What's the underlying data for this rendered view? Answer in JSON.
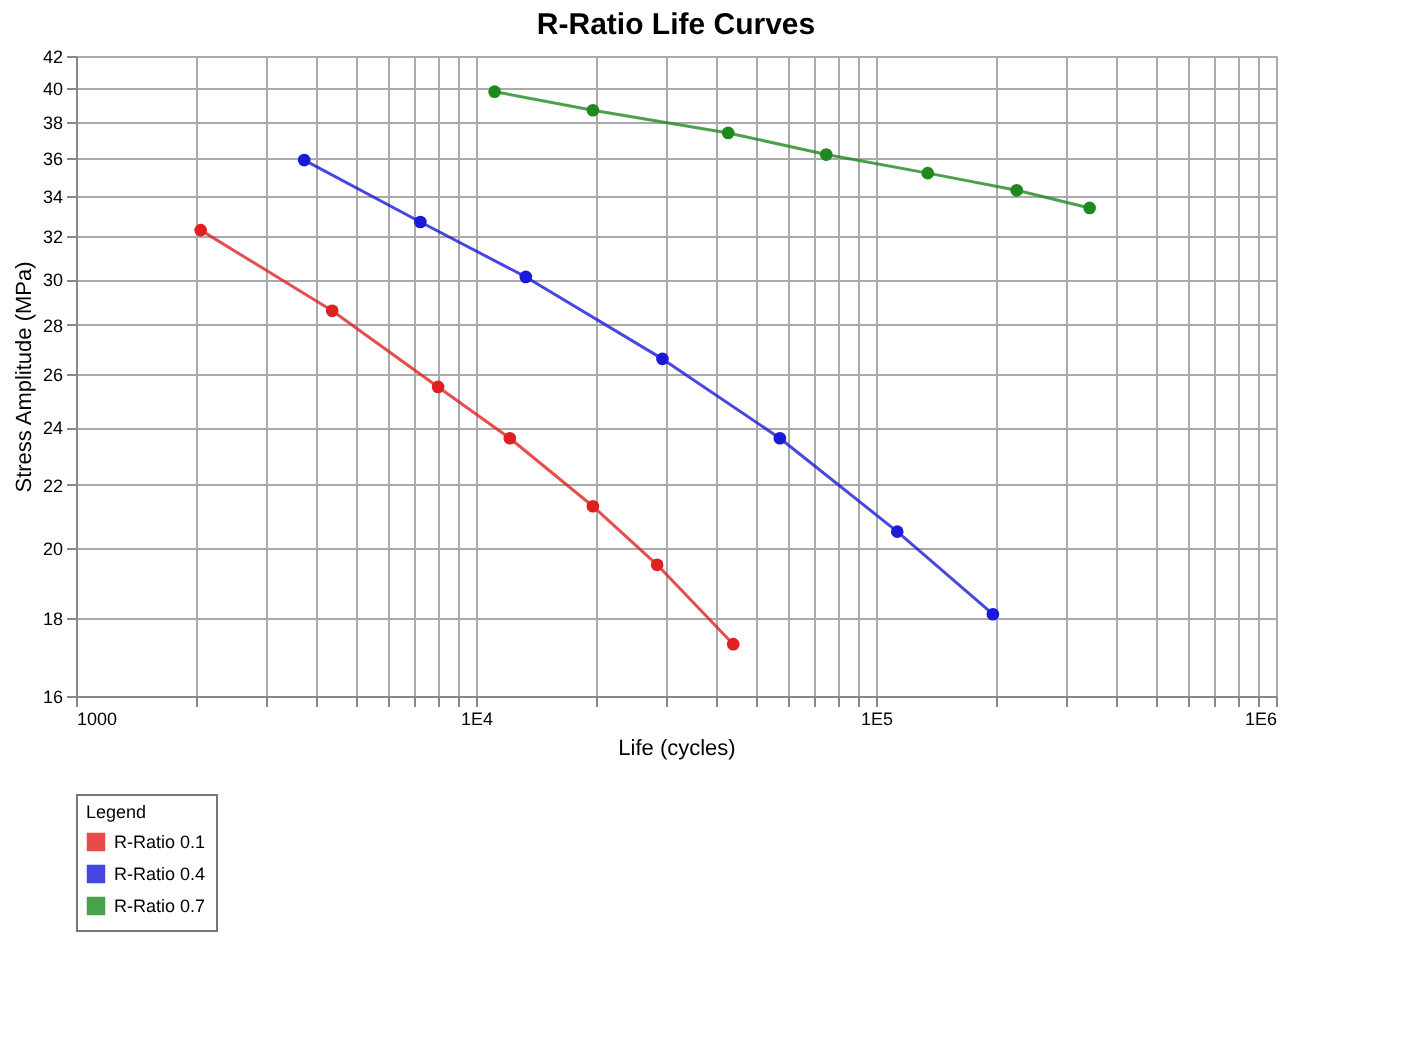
{
  "chart_data": {
    "type": "line",
    "title": "R-Ratio Life Curves",
    "xlabel": "Life (cycles)",
    "ylabel": "Stress Amplitude (MPa)",
    "legend_title": "Legend",
    "legend": "bottom",
    "log": "xy",
    "grid": true,
    "marker": "circle",
    "line_style": "solid",
    "xlim": [
      1000,
      1000000
    ],
    "ylim": [
      16,
      42
    ],
    "xticks": [
      {
        "value": 1000,
        "label": "1000"
      },
      {
        "value": 2000,
        "label": null
      },
      {
        "value": 3000,
        "label": null
      },
      {
        "value": 4000,
        "label": null
      },
      {
        "value": 5000,
        "label": null
      },
      {
        "value": 6000,
        "label": null
      },
      {
        "value": 7000,
        "label": null
      },
      {
        "value": 8000,
        "label": null
      },
      {
        "value": 9000,
        "label": null
      },
      {
        "value": 10000,
        "label": "1E4"
      },
      {
        "value": 20000,
        "label": null
      },
      {
        "value": 30000,
        "label": null
      },
      {
        "value": 40000,
        "label": null
      },
      {
        "value": 50000,
        "label": null
      },
      {
        "value": 60000,
        "label": null
      },
      {
        "value": 70000,
        "label": null
      },
      {
        "value": 80000,
        "label": null
      },
      {
        "value": 90000,
        "label": null
      },
      {
        "value": 100000,
        "label": "1E5"
      },
      {
        "value": 200000,
        "label": null
      },
      {
        "value": 300000,
        "label": null
      },
      {
        "value": 400000,
        "label": null
      },
      {
        "value": 500000,
        "label": null
      },
      {
        "value": 600000,
        "label": null
      },
      {
        "value": 700000,
        "label": null
      },
      {
        "value": 800000,
        "label": null
      },
      {
        "value": 900000,
        "label": null
      },
      {
        "value": 1000000,
        "label": "1E6"
      }
    ],
    "yticks": [
      16,
      18,
      20,
      22,
      24,
      26,
      28,
      30,
      32,
      34,
      36,
      38,
      40,
      42
    ],
    "series": [
      {
        "name": "R-Ratio 0.1",
        "color": "#e02020",
        "x": [
          2050,
          4370,
          8040,
          12150,
          19600,
          28370,
          43960
        ],
        "values": [
          32.3,
          28.6,
          25.5,
          23.6,
          21.3,
          19.5,
          17.3
        ]
      },
      {
        "name": "R-Ratio 0.4",
        "color": "#1a1ad8",
        "x": [
          3720,
          7260,
          13320,
          29250,
          57500,
          113000,
          196000
        ],
        "values": [
          35.9,
          32.7,
          30.1,
          26.6,
          23.6,
          20.5,
          18.1
        ]
      },
      {
        "name": "R-Ratio 0.7",
        "color": "#1e8a1e",
        "x": [
          11130,
          19600,
          42700,
          75100,
          134700,
          224800,
          342000
        ],
        "values": [
          39.8,
          38.7,
          37.4,
          36.2,
          35.2,
          34.3,
          33.4
        ]
      }
    ]
  }
}
